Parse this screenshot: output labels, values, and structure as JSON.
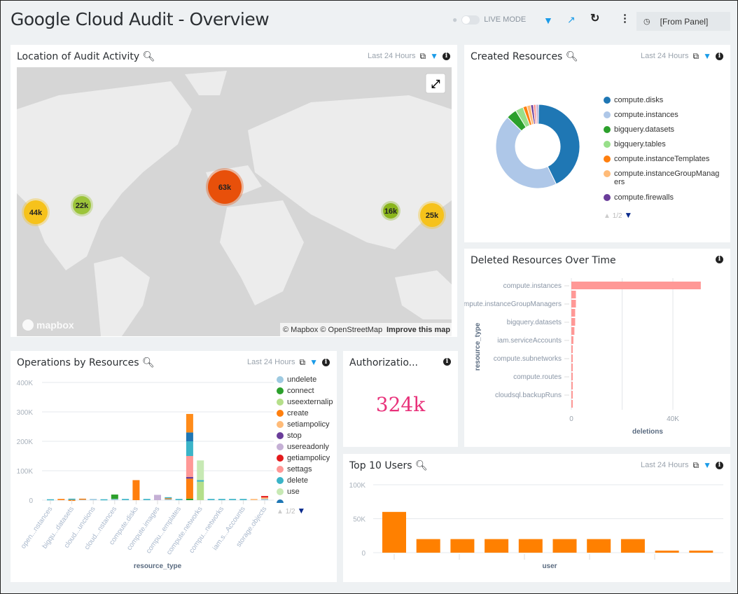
{
  "header": {
    "title": "Google Cloud Audit - Overview",
    "live_mode_label": "LIVE MODE",
    "time_range": "[From Panel]"
  },
  "panels": {
    "map": {
      "title": "Location of Audit Activity",
      "range": "Last 24 Hours",
      "attribution": "© Mapbox © OpenStreetMap",
      "improve_link": "Improve this map",
      "logo": "mapbox",
      "clusters": [
        {
          "label": "44k",
          "color": "#f6c21b"
        },
        {
          "label": "22k",
          "color": "#9cc43a"
        },
        {
          "label": "63k",
          "color": "#e8500a"
        },
        {
          "label": "16k",
          "color": "#8ab51c"
        },
        {
          "label": "25k",
          "color": "#f6c21b"
        }
      ]
    },
    "created": {
      "title": "Created Resources",
      "range": "Last 24 Hours",
      "pager": "1/2"
    },
    "deleted": {
      "title": "Deleted Resources Over Time"
    },
    "operations": {
      "title": "Operations by Resources",
      "range": "Last 24 Hours",
      "pager": "1/2"
    },
    "authorization": {
      "title": "Authorizatio...",
      "value": "324k",
      "value_color": "#e8317a"
    },
    "users": {
      "title": "Top 10 Users",
      "range": "Last 24 Hours"
    }
  },
  "chart_data": [
    {
      "type": "pie",
      "donut": true,
      "legend_position": "right",
      "slices": [
        {
          "name": "compute.disks",
          "value": 42,
          "color": "#1f77b4"
        },
        {
          "name": "compute.instances",
          "value": 44,
          "color": "#aec7e8"
        },
        {
          "name": "bigquery.datasets",
          "value": 4,
          "color": "#2ca02c"
        },
        {
          "name": "bigquery.tables",
          "value": 3,
          "color": "#98df8a"
        },
        {
          "name": "compute.instanceTemplates",
          "value": 1.5,
          "color": "#ff7f0e"
        },
        {
          "name": "compute.instanceGroupManagers",
          "value": 1.5,
          "color": "#ffbb78"
        },
        {
          "name": "compute.firewalls",
          "value": 1,
          "color": "#6a3d9a"
        },
        {
          "name": "",
          "value": 1,
          "color": "#ff9896"
        },
        {
          "name": "",
          "value": 1,
          "color": "#c5b0d5"
        }
      ]
    },
    {
      "type": "bar",
      "orientation": "horizontal",
      "xlabel": "deletions",
      "ylabel": "resource_type",
      "xlim": [
        0,
        55000
      ],
      "xticks": [
        "0",
        "40K"
      ],
      "grid": true,
      "color": "#ff9896",
      "categories": [
        "compute.instances",
        "",
        "compute.instanceGroupManagers",
        "",
        "bigquery.datasets",
        "",
        "iam.serviceAccounts",
        "",
        "compute.subnetworks",
        "",
        "compute.routes",
        "",
        "cloudsql.backupRuns",
        ""
      ],
      "values": [
        51000,
        1800,
        1800,
        1500,
        1500,
        1200,
        800,
        500,
        500,
        500,
        500,
        500,
        500,
        500
      ]
    },
    {
      "type": "bar",
      "stacked": true,
      "xlabel": "resource_type",
      "ylabel": "",
      "ylim": [
        0,
        400000
      ],
      "yticks": [
        "0",
        "100K",
        "200K",
        "300K",
        "400K"
      ],
      "grid": true,
      "legend_position": "right",
      "categories": [
        "open...nstances",
        "",
        "bigqu...datasets",
        "",
        "cloud...unctions",
        "",
        "cloud...nstances",
        "",
        "compute.disks",
        "",
        "compute.images",
        "",
        "compu...emplates",
        "",
        "compute.networks",
        "",
        "compu...networks",
        "",
        "iam.s...Accounts",
        "",
        "storage.objects"
      ],
      "series": [
        {
          "name": "undelete",
          "color": "#9ecae1",
          "values": [
            0,
            0,
            0,
            4000,
            4000,
            0,
            4000,
            0,
            0,
            0,
            0,
            5000,
            0,
            0,
            0,
            0,
            0,
            0,
            0,
            0,
            4000
          ]
        },
        {
          "name": "connect",
          "color": "#2ca02c",
          "values": [
            0,
            0,
            0,
            0,
            0,
            0,
            15000,
            0,
            0,
            0,
            0,
            0,
            0,
            5000,
            0,
            0,
            0,
            0,
            0,
            0,
            0
          ]
        },
        {
          "name": "useexternalip",
          "color": "#b5df8a",
          "values": [
            0,
            0,
            0,
            0,
            0,
            0,
            0,
            0,
            0,
            0,
            0,
            0,
            0,
            0,
            63000,
            0,
            0,
            0,
            0,
            0,
            0
          ]
        },
        {
          "name": "create",
          "color": "#ff7f0e",
          "values": [
            0,
            4000,
            1000,
            1000,
            0,
            0,
            0,
            0,
            68000,
            0,
            0,
            2000,
            0,
            68000,
            0,
            0,
            0,
            0,
            0,
            0,
            0
          ]
        },
        {
          "name": "setiampolicy",
          "color": "#ffbb78",
          "values": [
            0,
            0,
            0,
            0,
            0,
            0,
            0,
            0,
            0,
            0,
            0,
            0,
            0,
            0,
            0,
            0,
            0,
            0,
            0,
            4000,
            5000
          ]
        },
        {
          "name": "stop",
          "color": "#6a3d9a",
          "values": [
            0,
            0,
            0,
            0,
            0,
            0,
            0,
            0,
            0,
            0,
            0,
            0,
            0,
            6000,
            0,
            0,
            0,
            0,
            0,
            0,
            0
          ]
        },
        {
          "name": "usereadonly",
          "color": "#c5b0d5",
          "values": [
            0,
            0,
            0,
            0,
            0,
            0,
            0,
            0,
            0,
            0,
            18000,
            0,
            0,
            0,
            0,
            0,
            0,
            0,
            0,
            0,
            0
          ]
        },
        {
          "name": "getiampolicy",
          "color": "#e41a1c",
          "values": [
            0,
            0,
            0,
            0,
            0,
            0,
            0,
            0,
            0,
            0,
            0,
            0,
            0,
            0,
            0,
            0,
            0,
            0,
            0,
            0,
            5000
          ]
        },
        {
          "name": "settags",
          "color": "#ff9896",
          "values": [
            0,
            0,
            0,
            0,
            0,
            0,
            0,
            0,
            0,
            0,
            0,
            0,
            0,
            71000,
            0,
            0,
            0,
            0,
            0,
            0,
            0
          ]
        },
        {
          "name": "delete",
          "color": "#3bb4c8",
          "values": [
            3000,
            0,
            4000,
            0,
            0,
            3000,
            0,
            4000,
            0,
            4000,
            0,
            3000,
            4000,
            50000,
            5000,
            4000,
            4000,
            4000,
            4000,
            0,
            0
          ]
        },
        {
          "name": "use",
          "color": "#c7e9b4",
          "values": [
            0,
            0,
            0,
            0,
            0,
            0,
            0,
            0,
            0,
            0,
            0,
            0,
            0,
            0,
            67000,
            0,
            0,
            0,
            0,
            0,
            0
          ]
        },
        {
          "name": "",
          "color": "#1f77b4",
          "values": [
            0,
            0,
            0,
            0,
            0,
            0,
            0,
            0,
            0,
            0,
            0,
            0,
            0,
            30000,
            0,
            0,
            0,
            0,
            0,
            0,
            0
          ]
        },
        {
          "name": "",
          "color": "#ff8c1a",
          "values": [
            0,
            0,
            0,
            0,
            0,
            0,
            0,
            0,
            0,
            0,
            0,
            0,
            0,
            63000,
            0,
            0,
            0,
            0,
            0,
            0,
            0
          ]
        }
      ]
    },
    {
      "type": "bar",
      "xlabel": "user",
      "ylabel": "",
      "ylim": [
        0,
        100000
      ],
      "yticks": [
        "0",
        "50K",
        "100K"
      ],
      "grid": true,
      "color": "#ff8000",
      "values": [
        60000,
        20000,
        20000,
        20000,
        20000,
        20000,
        20000,
        20000,
        3000,
        3000
      ]
    }
  ]
}
